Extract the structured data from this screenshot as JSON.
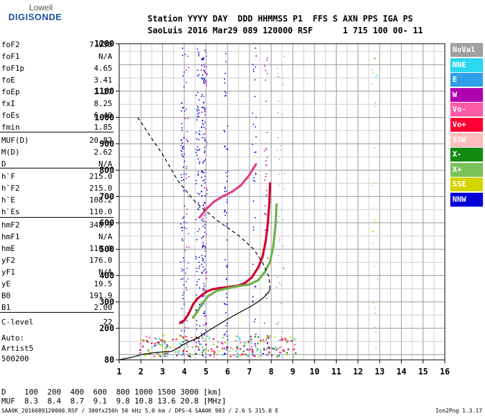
{
  "logo": {
    "line1": "Lowell",
    "line2": "DIGISONDE"
  },
  "header": {
    "row1": "Station YYYY DAY  DDD HHMMSS P1  FFS S AXN PPS IGA PS",
    "row2": "SaoLuis 2016 Mar29 089 120000 RSF      1 715 100 00- 11"
  },
  "scaled_params": [
    {
      "name": "foF2",
      "value": "7.950"
    },
    {
      "name": "foF1",
      "value": "N/A"
    },
    {
      "name": "foF1p",
      "value": "4.65"
    },
    {
      "name": "foE",
      "value": "3.41"
    },
    {
      "name": "foEp",
      "value": "3.27"
    },
    {
      "name": "fxI",
      "value": "8.25"
    },
    {
      "name": "foEs",
      "value": "6.40"
    },
    {
      "name": "fmin",
      "value": "1.85"
    },
    {
      "name": "MUF(D)",
      "value": "20.82"
    },
    {
      "name": "M(D)",
      "value": "2.62"
    },
    {
      "name": "D",
      "value": "N/A"
    },
    {
      "name": "h`F",
      "value": "215.0"
    },
    {
      "name": "h`F2",
      "value": "215.0"
    },
    {
      "name": "h`E",
      "value": "108.2"
    },
    {
      "name": "h`Es",
      "value": "110.0"
    },
    {
      "name": "hmF2",
      "value": "348.9"
    },
    {
      "name": "hmF1",
      "value": "N/A"
    },
    {
      "name": "hmE",
      "value": "110.0"
    },
    {
      "name": "yF2",
      "value": "176.0"
    },
    {
      "name": "yF1",
      "value": "N/A"
    },
    {
      "name": "yE",
      "value": "19.5"
    },
    {
      "name": "B0",
      "value": "191.9"
    },
    {
      "name": "B1",
      "value": "2.00"
    },
    {
      "name": "C-level",
      "value": "22"
    }
  ],
  "autoscaling": {
    "line1": "Auto:",
    "line2": "Artist5",
    "line3": "500200"
  },
  "legend": [
    {
      "label": "NoVal",
      "color": "#a0a0a0"
    },
    {
      "label": "NNE",
      "color": "#2ad8f0"
    },
    {
      "label": "E",
      "color": "#2fa0e8"
    },
    {
      "label": "W",
      "color": "#b000b0"
    },
    {
      "label": "Vo-",
      "color": "#ff5aa6"
    },
    {
      "label": "Vo+",
      "color": "#ff0030"
    },
    {
      "label": "SSW",
      "color": "#ffbcbc"
    },
    {
      "label": "X-",
      "color": "#108a10"
    },
    {
      "label": "X+",
      "color": "#7cc25a"
    },
    {
      "label": "SSE",
      "color": "#d4d400"
    },
    {
      "label": "NNW",
      "color": "#0000d8"
    }
  ],
  "muf_table": {
    "row1": "D    100  200  400  600  800 1000 1500 3000 [km]",
    "row2": "MUF  8.3  8.4  8.7  9.1  9.8 10.8 13.6 20.8 [MHz]"
  },
  "footer": {
    "left": "SAA0K_2016089120000.RSF / 300fx256h 50 kHz 5.0 km / DPS-4 SAA0K 903 / 2.6 S 315.8 E",
    "right": "Ion2Png 1.3.17"
  },
  "chart_data": {
    "type": "scatter",
    "x_ticks": [
      "1",
      "2",
      "3",
      "4",
      "5",
      "6",
      "7",
      "8",
      "9",
      "10",
      "11",
      "12",
      "13",
      "14",
      "15",
      "16"
    ],
    "y_ticks": [
      "80",
      "200",
      "300",
      "400",
      "500",
      "600",
      "700",
      "800",
      "900",
      "1000",
      "1100",
      "1280"
    ],
    "xlim": [
      1,
      16
    ],
    "ylim": [
      80,
      1280
    ],
    "grid": true,
    "series": [
      {
        "name": "Vo+",
        "color": "#d00030",
        "x": [
          3.8,
          4.0,
          4.2,
          4.4,
          4.6,
          4.8,
          5.0,
          5.3,
          5.6,
          6.0,
          6.5,
          6.8,
          7.1,
          7.4,
          7.6,
          7.75,
          7.85,
          7.92,
          7.95
        ],
        "y": [
          220,
          230,
          255,
          290,
          312,
          325,
          338,
          348,
          352,
          356,
          362,
          372,
          392,
          430,
          470,
          530,
          600,
          680,
          750
        ]
      },
      {
        "name": "X+",
        "color": "#6cb04a",
        "x": [
          4.4,
          4.6,
          4.8,
          5.1,
          5.5,
          6.0,
          6.5,
          7.0,
          7.4,
          7.7,
          7.95,
          8.1,
          8.2,
          8.25
        ],
        "y": [
          240,
          262,
          292,
          322,
          342,
          352,
          360,
          366,
          382,
          412,
          452,
          512,
          590,
          670
        ]
      },
      {
        "name": "Vo-",
        "color": "#e0408a",
        "x": [
          4.7,
          5.0,
          5.4,
          5.8,
          6.2,
          6.6,
          7.0,
          7.3
        ],
        "y": [
          620,
          652,
          682,
          702,
          718,
          742,
          782,
          822
        ]
      }
    ],
    "profile": {
      "x": [
        1.0,
        1.3,
        1.7,
        2.0,
        2.5,
        3.0,
        3.41,
        3.6,
        4.0,
        4.65,
        5.0,
        5.5,
        6.0,
        6.5,
        7.0,
        7.4,
        7.7,
        7.9,
        7.95
      ],
      "y": [
        80,
        85,
        92,
        100,
        106,
        110,
        112,
        120,
        140,
        165,
        185,
        210,
        235,
        258,
        280,
        300,
        320,
        338,
        349
      ]
    },
    "profile_topside": {
      "x": [
        7.95,
        7.9,
        7.6,
        7.2,
        6.5,
        5.5,
        4.5,
        3.7,
        3.0,
        2.5,
        2.1,
        1.85
      ],
      "y": [
        349,
        395,
        450,
        500,
        552,
        610,
        680,
        760,
        860,
        920,
        970,
        1000
      ]
    }
  }
}
